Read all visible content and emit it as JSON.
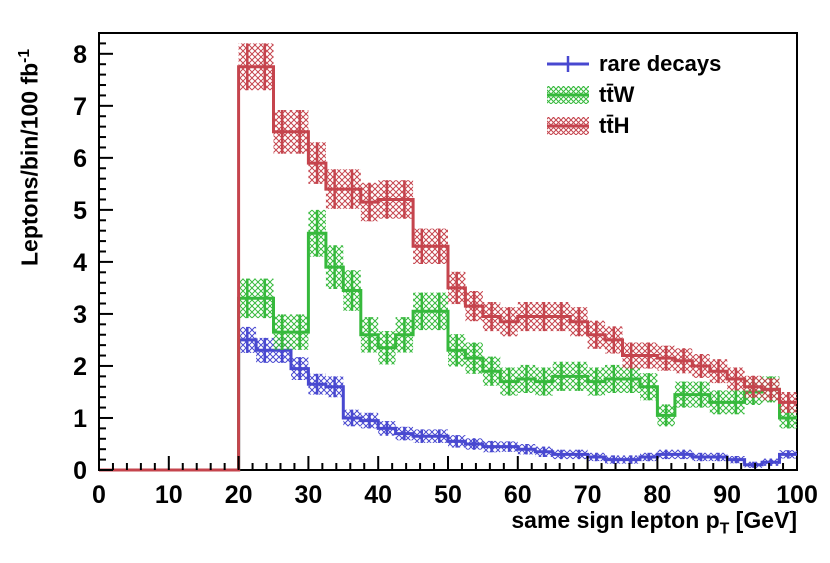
{
  "chart_data": {
    "type": "bar",
    "subtype": "step-histogram-with-error-bands",
    "title": "",
    "ylabel_main": "Leptons/bin/100 fb",
    "ylabel_sup": "-1",
    "xlabel_main": "same sign lepton p",
    "xlabel_sub": "T",
    "xlabel_unit": " [GeV]",
    "grid": false,
    "legend_position": "top-right",
    "x_axis": {
      "min": 0,
      "max": 100,
      "major_tick": 10,
      "minor_tick": 2,
      "ticks": [
        0,
        10,
        20,
        30,
        40,
        50,
        60,
        70,
        80,
        90,
        100
      ]
    },
    "y_axis": {
      "min": 0,
      "max": 8.4,
      "major_tick": 1,
      "minor_tick": 0.2,
      "ticks": [
        0,
        1,
        2,
        3,
        4,
        5,
        6,
        7,
        8
      ]
    },
    "bins": {
      "start": 20,
      "width": 2.5,
      "count": 32,
      "note": "all series are 0 below 20 GeV"
    },
    "series": [
      {
        "name": "rare decays",
        "color": "#4848d0",
        "band": true,
        "values": [
          2.5,
          2.3,
          2.3,
          1.95,
          1.65,
          1.6,
          1.0,
          0.95,
          0.8,
          0.7,
          0.65,
          0.65,
          0.55,
          0.5,
          0.45,
          0.45,
          0.4,
          0.35,
          0.3,
          0.3,
          0.25,
          0.2,
          0.2,
          0.25,
          0.3,
          0.3,
          0.25,
          0.25,
          0.2,
          0.1,
          0.15,
          0.3
        ],
        "errors": [
          0.25,
          0.24,
          0.24,
          0.22,
          0.2,
          0.2,
          0.16,
          0.15,
          0.14,
          0.13,
          0.13,
          0.13,
          0.12,
          0.11,
          0.11,
          0.1,
          0.1,
          0.1,
          0.09,
          0.09,
          0.08,
          0.08,
          0.08,
          0.08,
          0.09,
          0.09,
          0.08,
          0.08,
          0.07,
          0.06,
          0.07,
          0.08
        ]
      },
      {
        "name": "tt̄W",
        "color": "#36b93c",
        "band": true,
        "values": [
          3.3,
          3.3,
          2.65,
          2.65,
          4.55,
          3.9,
          3.45,
          2.6,
          2.35,
          2.6,
          3.05,
          3.05,
          2.3,
          2.15,
          1.9,
          1.7,
          1.75,
          1.7,
          1.8,
          1.8,
          1.7,
          1.75,
          1.75,
          1.6,
          1.05,
          1.45,
          1.45,
          1.3,
          1.3,
          1.5,
          1.55,
          1.0
        ],
        "errors": [
          0.38,
          0.38,
          0.34,
          0.34,
          0.45,
          0.42,
          0.39,
          0.34,
          0.32,
          0.34,
          0.36,
          0.36,
          0.31,
          0.3,
          0.28,
          0.27,
          0.27,
          0.27,
          0.28,
          0.28,
          0.27,
          0.27,
          0.27,
          0.26,
          0.21,
          0.25,
          0.25,
          0.23,
          0.23,
          0.25,
          0.25,
          0.2
        ]
      },
      {
        "name": "tt̄H",
        "color": "#c5444d",
        "band": true,
        "values": [
          7.75,
          7.75,
          6.5,
          6.5,
          5.9,
          5.4,
          5.4,
          5.15,
          5.2,
          5.2,
          4.3,
          4.3,
          3.5,
          3.15,
          2.95,
          2.85,
          2.95,
          2.95,
          2.95,
          2.85,
          2.6,
          2.5,
          2.2,
          2.2,
          2.15,
          2.1,
          2.0,
          1.9,
          1.75,
          1.6,
          1.55,
          1.3
        ],
        "errors": [
          0.45,
          0.45,
          0.42,
          0.42,
          0.4,
          0.38,
          0.38,
          0.37,
          0.37,
          0.37,
          0.34,
          0.34,
          0.31,
          0.29,
          0.28,
          0.28,
          0.28,
          0.28,
          0.28,
          0.28,
          0.27,
          0.26,
          0.25,
          0.25,
          0.24,
          0.24,
          0.23,
          0.23,
          0.22,
          0.21,
          0.21,
          0.2
        ]
      }
    ]
  }
}
